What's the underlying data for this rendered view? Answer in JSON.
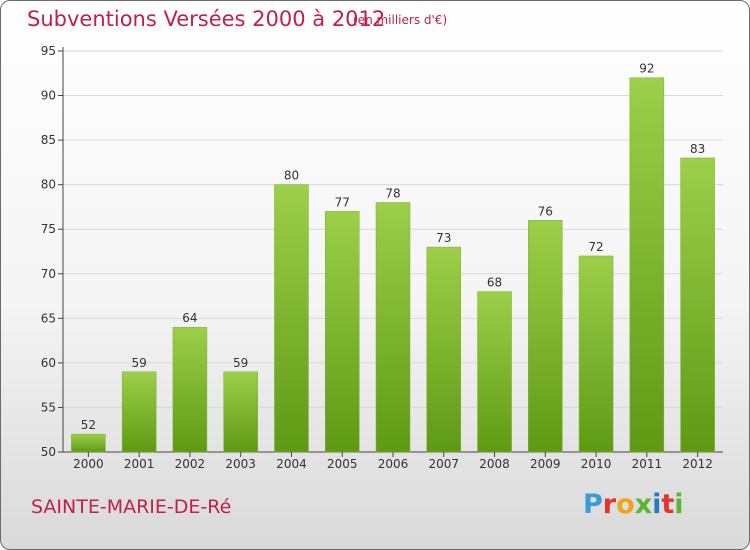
{
  "title": "Subventions Versées 2000 à 2012",
  "subtitle": "(en milliers d'€)",
  "commune": "SAINTE-MARIE-DE-Ré",
  "logo_text": "Proxiti",
  "colors": {
    "title": "#c0204a",
    "bar_top": "#9ccf4a",
    "bar_bottom": "#5f9a14",
    "grid": "#d8d8d8",
    "axis": "#444444"
  },
  "chart_data": {
    "type": "bar",
    "categories": [
      "2000",
      "2001",
      "2002",
      "2003",
      "2004",
      "2005",
      "2006",
      "2007",
      "2008",
      "2009",
      "2010",
      "2011",
      "2012"
    ],
    "values": [
      52,
      59,
      64,
      59,
      80,
      77,
      78,
      73,
      68,
      76,
      72,
      92,
      83
    ],
    "ylim": [
      50,
      95
    ],
    "yticks": [
      50,
      55,
      60,
      65,
      70,
      75,
      80,
      85,
      90,
      95
    ],
    "grid": true,
    "xlabel": "",
    "ylabel": ""
  }
}
